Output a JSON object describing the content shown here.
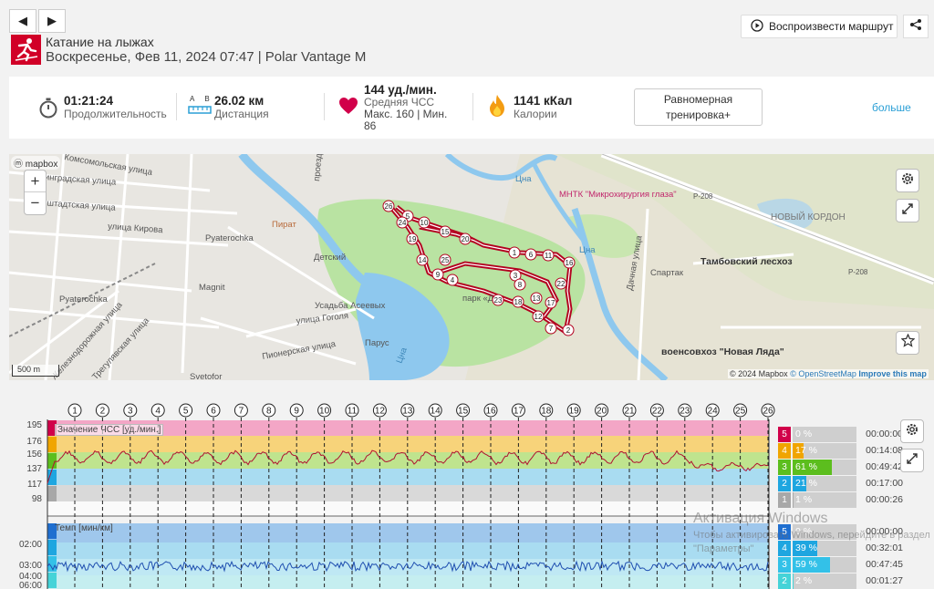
{
  "nav": {
    "prev_glyph": "◀",
    "next_glyph": "▶"
  },
  "header": {
    "sport_icon": "skiing-icon",
    "title": "Катание на лыжах",
    "subtitle": "Воскресенье, Фев 11, 2024 07:47 | Polar Vantage M",
    "replay_label": "Воспроизвести маршрут",
    "share_icon": "share-icon"
  },
  "stats": {
    "duration": {
      "value": "01:21:24",
      "label": "Продолжительность"
    },
    "distance": {
      "value": "26.02 км",
      "label": "Дистанция",
      "icon_a": "A",
      "icon_b": "B"
    },
    "hr": {
      "value": "144 уд./мин.",
      "label": "Средняя ЧСС",
      "max_line": "Макс. 160  |  Мин.",
      "min_value": "86"
    },
    "calories": {
      "value": "1141 кКал",
      "label": "Калории"
    },
    "training_label": "Равномерная тренировка+",
    "more_label": "больше"
  },
  "map": {
    "provider": "mapbox",
    "zoom_in": "+",
    "zoom_out": "−",
    "scale": "500 m",
    "attribution_1": "© 2024 Mapbox",
    "attribution_2": "© OpenStreetMap",
    "attribution_3": "Improve this map",
    "labels": [
      "Комсомольская улица",
      "Ленинградская улица",
      "Кронштадтская улица",
      "улица Кирова",
      "Pyaterochka",
      "Pyaterochka",
      "Magnit",
      "Пират",
      "Детский",
      "Усадьба Асеевых",
      "улица Гоголя",
      "Парус",
      "Пионерская улица",
      "Svetofor",
      "Трегулявская улица",
      "Железнодорожная улица",
      "Тамбовский лесхоз",
      "МНТК \"Микрохирургия глаза\"",
      "НОВЫЙ КОРДОН",
      "Спартак",
      "Дачная улица",
      "Р-208",
      "Р-208",
      "Цна",
      "Цна",
      "Цна",
      "парк «Д",
      "военсовхоз \"Новая Ляда\"",
      "проезд"
    ],
    "markers": [
      "26",
      "5",
      "24",
      "10",
      "15",
      "20",
      "19",
      "1",
      "6",
      "11",
      "16",
      "14",
      "25",
      "9",
      "4",
      "3",
      "8",
      "22",
      "13",
      "18",
      "23",
      "17",
      "12",
      "7",
      "2"
    ]
  },
  "chart": {
    "laps": [
      "1",
      "2",
      "3",
      "4",
      "5",
      "6",
      "7",
      "8",
      "9",
      "10",
      "11",
      "12",
      "13",
      "14",
      "15",
      "16",
      "17",
      "18",
      "19",
      "20",
      "21",
      "22",
      "23",
      "24",
      "25",
      "26"
    ],
    "hr_panel": {
      "title": "Значение ЧСС [уд./мин.]",
      "y_ticks": [
        "195",
        "176",
        "156",
        "137",
        "117",
        "98"
      ],
      "zones": [
        {
          "num": "5",
          "pct": "0 %",
          "time": "00:00:00",
          "color": "#d1004a",
          "value": 0
        },
        {
          "num": "4",
          "pct": "17 %",
          "time": "00:14:08",
          "color": "#f0a500",
          "value": 17
        },
        {
          "num": "3",
          "pct": "61 %",
          "time": "00:49:42",
          "color": "#5cbe1e",
          "value": 61
        },
        {
          "num": "2",
          "pct": "21 %",
          "time": "00:17:00",
          "color": "#1ea6e0",
          "value": 21
        },
        {
          "num": "1",
          "pct": "1 %",
          "time": "00:00:26",
          "color": "#a8a8a8",
          "value": 1
        }
      ]
    },
    "pace_panel": {
      "title": "Темп [мин/км]",
      "y_ticks": [
        "02:00",
        "03:00",
        "04:00",
        "06:00"
      ],
      "zones": [
        {
          "num": "5",
          "pct": "0 %",
          "time": "00:00:00",
          "color": "#1f6fd0",
          "value": 0
        },
        {
          "num": "4",
          "pct": "39 %",
          "time": "00:32:01",
          "color": "#1ea6e0",
          "value": 39
        },
        {
          "num": "3",
          "pct": "59 %",
          "time": "00:47:45",
          "color": "#33c1e8",
          "value": 59
        },
        {
          "num": "2",
          "pct": "2 %",
          "time": "00:01:27",
          "color": "#45d3d8",
          "value": 2
        }
      ]
    },
    "settings_icon": "gear-icon",
    "expand_icon": "expand-icon"
  },
  "os_watermark": {
    "title": "Активация Windows",
    "text": "Чтобы активировать Windows, перейдите в раздел \"Параметры\""
  }
}
